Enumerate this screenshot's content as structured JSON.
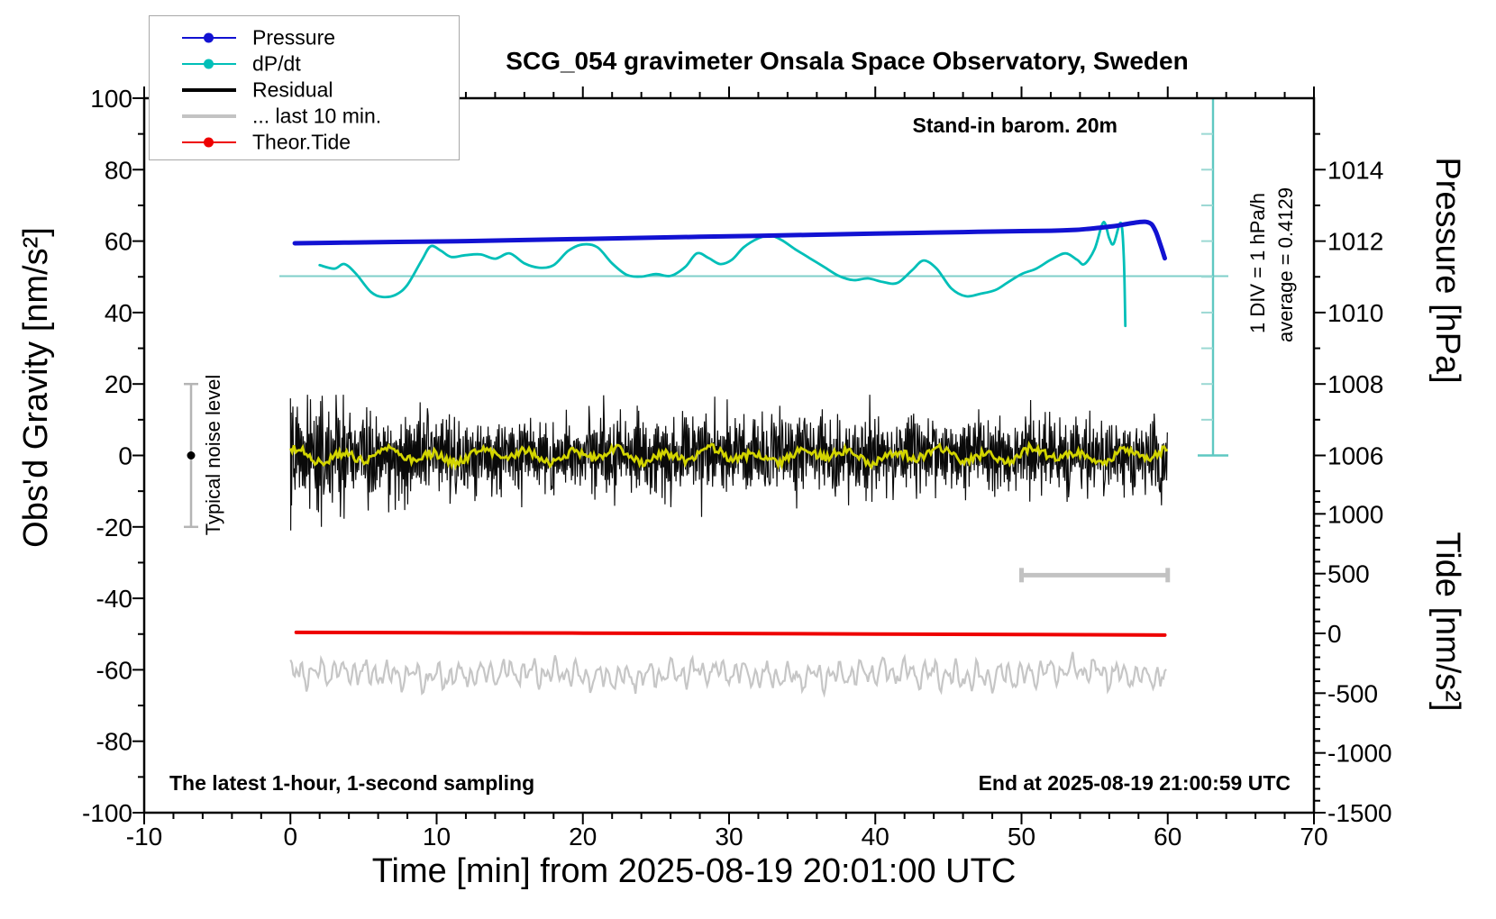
{
  "title": "SCG_054 gravimeter Onsala Space Observatory, Sweden",
  "annotations": {
    "barometer": "Stand-in barom. 20m",
    "div_scale": "1 DIV = 1 hPa/h",
    "average": "average = 0.4129",
    "noise_level": "Typical noise level",
    "sampling": "The latest 1-hour, 1-second sampling",
    "end_time": "End at 2025-08-19 21:00:59 UTC"
  },
  "legend": {
    "items": [
      {
        "label": "Pressure",
        "color": "#1212d2",
        "marker": true,
        "thickness": 2.5
      },
      {
        "label": "dP/dt",
        "color": "#00bfb8",
        "marker": true,
        "thickness": 2.5
      },
      {
        "label": "Residual",
        "color": "#000000",
        "marker": false,
        "thickness": 4.5
      },
      {
        "label": "... last 10 min.",
        "color": "#c3c3c3",
        "marker": false,
        "thickness": 4.5
      },
      {
        "label": "Theor.Tide",
        "color": "#ee0000",
        "marker": true,
        "thickness": 2.5
      }
    ]
  },
  "axes": {
    "x": {
      "title": "Time [min] from 2025-08-19 20:01:00 UTC",
      "range": [
        -10,
        70
      ],
      "major_ticks": [
        -10,
        0,
        10,
        20,
        30,
        40,
        50,
        60,
        70
      ],
      "minor_step": 2
    },
    "gravity": {
      "title": "Obs'd Gravity [nm/s²]",
      "range": [
        -100,
        100
      ],
      "major_step": 20,
      "minor_step": 10
    },
    "pressure": {
      "title": "Pressure [hPa]",
      "major_ticks": [
        1008,
        1010,
        1012,
        1014
      ],
      "minor_step": 1
    },
    "tide": {
      "title": "Tide [nm/s²]",
      "major_ticks": [
        -1500,
        -1000,
        -500,
        0,
        500,
        1000
      ],
      "minor_step": 100
    }
  },
  "chart_data": {
    "type": "line",
    "title": "SCG_054 gravimeter Onsala Space Observatory, Sweden",
    "xlabel": "Time [min] from 2025-08-19 20:01:00 UTC",
    "x_range_min": [
      -10,
      70
    ],
    "left_axis": {
      "label": "Obs'd Gravity [nm/s²]",
      "range": [
        -100,
        100
      ]
    },
    "right_axis_pressure": {
      "label": "Pressure [hPa]",
      "tick_range": [
        1008,
        1014
      ]
    },
    "right_axis_tide": {
      "label": "Tide [nm/s²]",
      "tick_range": [
        -1500,
        1000
      ]
    },
    "grid": false,
    "legend_position": "top-left",
    "series": [
      {
        "name": "Pressure",
        "unit": "hPa",
        "color": "#1212d2",
        "points": [
          [
            0.3,
            1011.94
          ],
          [
            4,
            1011.96
          ],
          [
            8,
            1011.98
          ],
          [
            12,
            1012.0
          ],
          [
            16,
            1012.03
          ],
          [
            20,
            1012.06
          ],
          [
            24,
            1012.09
          ],
          [
            28,
            1012.12
          ],
          [
            32,
            1012.15
          ],
          [
            36,
            1012.18
          ],
          [
            40,
            1012.21
          ],
          [
            44,
            1012.24
          ],
          [
            47,
            1012.26
          ],
          [
            50,
            1012.28
          ],
          [
            52,
            1012.29
          ],
          [
            53.5,
            1012.31
          ],
          [
            54.5,
            1012.34
          ],
          [
            55.5,
            1012.38
          ],
          [
            56.5,
            1012.43
          ],
          [
            57.2,
            1012.48
          ],
          [
            58,
            1012.53
          ],
          [
            58.5,
            1012.54
          ],
          [
            58.9,
            1012.47
          ],
          [
            59.2,
            1012.25
          ],
          [
            59.5,
            1011.9
          ],
          [
            59.8,
            1011.52
          ]
        ]
      },
      {
        "name": "dP/dt",
        "unit": "hPa/h",
        "color": "#00bfb8",
        "average": 0.4129,
        "scale_note": "1 DIV = 1 hPa/h",
        "points": [
          [
            2,
            0.72
          ],
          [
            3,
            0.62
          ],
          [
            3.7,
            0.75
          ],
          [
            4.5,
            0.47
          ],
          [
            5.5,
            -0.03
          ],
          [
            6.3,
            -0.17
          ],
          [
            7.2,
            -0.11
          ],
          [
            8,
            0.17
          ],
          [
            9,
            0.87
          ],
          [
            9.6,
            1.25
          ],
          [
            10.3,
            1.12
          ],
          [
            11,
            0.95
          ],
          [
            12,
            1.0
          ],
          [
            13,
            1.02
          ],
          [
            14,
            0.9
          ],
          [
            15,
            1.05
          ],
          [
            16,
            0.77
          ],
          [
            17,
            0.65
          ],
          [
            18,
            0.72
          ],
          [
            19,
            1.12
          ],
          [
            20,
            1.3
          ],
          [
            21,
            1.22
          ],
          [
            22,
            0.77
          ],
          [
            23,
            0.45
          ],
          [
            24,
            0.4
          ],
          [
            25,
            0.47
          ],
          [
            26,
            0.42
          ],
          [
            27,
            0.67
          ],
          [
            27.8,
            1.05
          ],
          [
            28.6,
            0.92
          ],
          [
            29.4,
            0.75
          ],
          [
            30.2,
            0.87
          ],
          [
            31,
            1.22
          ],
          [
            32,
            1.47
          ],
          [
            32.8,
            1.55
          ],
          [
            33.6,
            1.42
          ],
          [
            34.5,
            1.17
          ],
          [
            35.5,
            0.92
          ],
          [
            36.5,
            0.67
          ],
          [
            37.5,
            0.42
          ],
          [
            38.5,
            0.3
          ],
          [
            39.5,
            0.35
          ],
          [
            40.5,
            0.25
          ],
          [
            41.5,
            0.22
          ],
          [
            42.5,
            0.57
          ],
          [
            43.3,
            0.85
          ],
          [
            44.2,
            0.62
          ],
          [
            45.2,
            0.07
          ],
          [
            46.2,
            -0.15
          ],
          [
            47.2,
            -0.08
          ],
          [
            48.2,
            0.02
          ],
          [
            49,
            0.22
          ],
          [
            50,
            0.47
          ],
          [
            51,
            0.62
          ],
          [
            52,
            0.87
          ],
          [
            53,
            1.05
          ],
          [
            53.8,
            0.87
          ],
          [
            54.3,
            0.75
          ],
          [
            55,
            1.17
          ],
          [
            55.6,
            1.92
          ],
          [
            56,
            1.47
          ],
          [
            56.3,
            1.32
          ],
          [
            56.8,
            1.9
          ],
          [
            57,
            0.87
          ],
          [
            57.1,
            -0.98
          ]
        ]
      },
      {
        "name": "Residual",
        "unit": "nm/s²",
        "color": "#000000",
        "description": "zero-mean 1-second noise band, 0-60 min",
        "envelope": {
          "typical_peak": 9,
          "spike_min": -21,
          "spike_max": 17,
          "start_transient_minutes": 4,
          "smoothed_color": "#d2d400"
        }
      },
      {
        "name": "... last 10 min.",
        "unit": "nm/s²",
        "color": "#c6c6c6",
        "description": "expanded residual trace drawn near -61 nm/s² on gravity axis",
        "center_on_gravity_axis": -61.3,
        "amplitude": 4.5,
        "window_bar": {
          "from_min": 50,
          "to_min": 60,
          "gravity_level": -33.5
        }
      },
      {
        "name": "Theor.Tide",
        "unit": "nm/s² (tide axis)",
        "color": "#ee0000",
        "points": [
          [
            0.4,
            8
          ],
          [
            10,
            5
          ],
          [
            20,
            2
          ],
          [
            30,
            -1
          ],
          [
            40,
            -5
          ],
          [
            50,
            -9
          ],
          [
            59.8,
            -14
          ]
        ]
      }
    ],
    "reference_line": {
      "series": "dP/dt",
      "value_hpa_per_h": 0.4129,
      "gravity_level": 50.2,
      "color": "#7fcfca"
    },
    "div_scalebar": {
      "x_min": 63.1,
      "gravity_top": 100,
      "gravity_bottom": 0,
      "divisions": 10,
      "color": "#5fc8c2"
    },
    "noise_bar": {
      "x_min": -6.8,
      "center": 0,
      "half_range": 20,
      "color": "#b5b5b5"
    }
  }
}
